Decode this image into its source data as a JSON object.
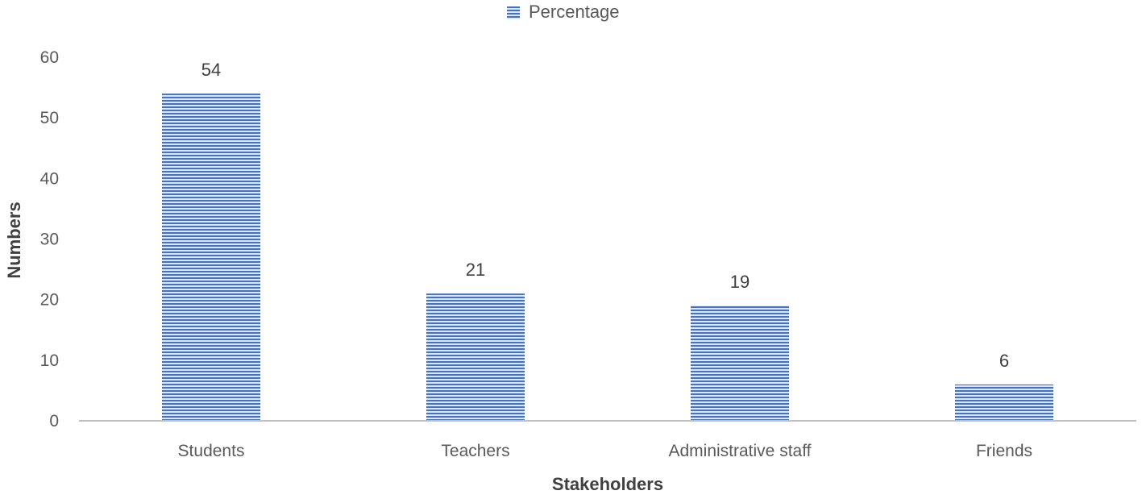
{
  "chart_data": {
    "type": "bar",
    "categories": [
      "Students",
      "Teachers",
      "Administrative staff",
      "Friends"
    ],
    "series": [
      {
        "name": "Percentage",
        "values": [
          54,
          21,
          19,
          6
        ]
      }
    ],
    "data_labels": [
      "54",
      "21",
      "19",
      "6"
    ],
    "title": "",
    "xlabel": "Stakeholders",
    "ylabel": "Numbers",
    "ylim": [
      0,
      60
    ],
    "yticks": [
      0,
      10,
      20,
      30,
      40,
      50,
      60
    ],
    "ytick_labels": [
      "0",
      "10",
      "20",
      "30",
      "40",
      "50",
      "60"
    ],
    "grid": false,
    "legend_position": "top-center",
    "colors": {
      "bar": "#4472C4",
      "bar_stripe_light": "#DCE6F7",
      "axis": "#BFBFBF"
    }
  }
}
